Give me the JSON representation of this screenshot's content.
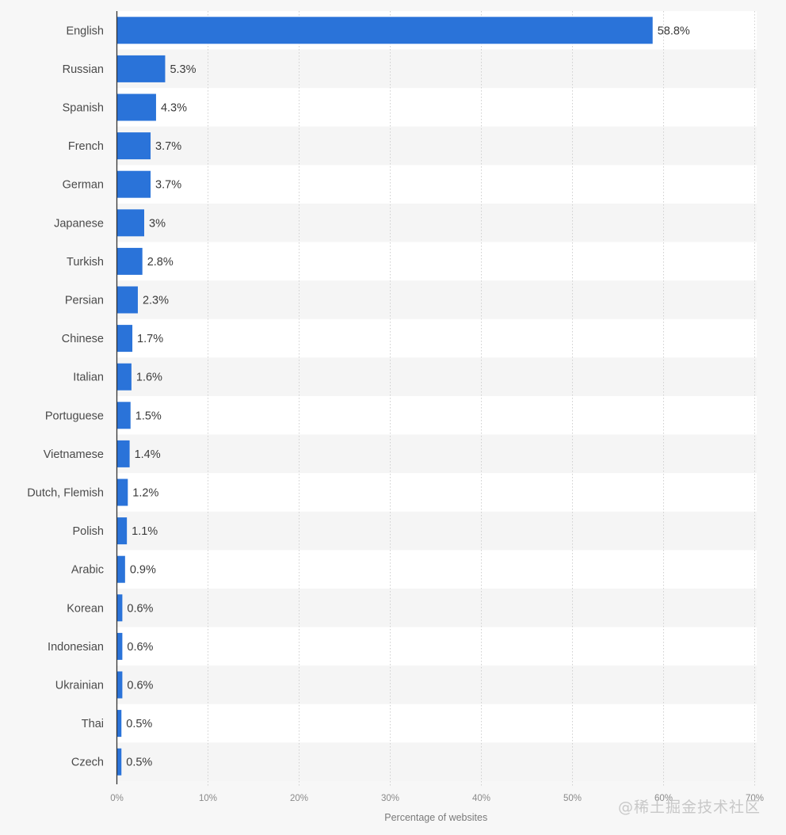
{
  "chart_data": {
    "type": "bar",
    "orientation": "horizontal",
    "categories": [
      "English",
      "Russian",
      "Spanish",
      "French",
      "German",
      "Japanese",
      "Turkish",
      "Persian",
      "Chinese",
      "Italian",
      "Portuguese",
      "Vietnamese",
      "Dutch, Flemish",
      "Polish",
      "Arabic",
      "Korean",
      "Indonesian",
      "Ukrainian",
      "Thai",
      "Czech"
    ],
    "values": [
      58.8,
      5.3,
      4.3,
      3.7,
      3.7,
      3,
      2.8,
      2.3,
      1.7,
      1.6,
      1.5,
      1.4,
      1.2,
      1.1,
      0.9,
      0.6,
      0.6,
      0.6,
      0.5,
      0.5
    ],
    "value_labels": [
      "58.8%",
      "5.3%",
      "4.3%",
      "3.7%",
      "3.7%",
      "3%",
      "2.8%",
      "2.3%",
      "1.7%",
      "1.6%",
      "1.5%",
      "1.4%",
      "1.2%",
      "1.1%",
      "0.9%",
      "0.6%",
      "0.6%",
      "0.6%",
      "0.5%",
      "0.5%"
    ],
    "xticks": [
      0,
      10,
      20,
      30,
      40,
      50,
      60,
      70
    ],
    "xtick_labels": [
      "0%",
      "10%",
      "20%",
      "30%",
      "40%",
      "50%",
      "60%",
      "70%"
    ],
    "xlim": [
      0,
      70
    ],
    "xlabel": "Percentage of websites",
    "grid": "vertical-dotted",
    "bar_color": "#2a73d9"
  },
  "watermark": "@稀土掘金技术社区"
}
